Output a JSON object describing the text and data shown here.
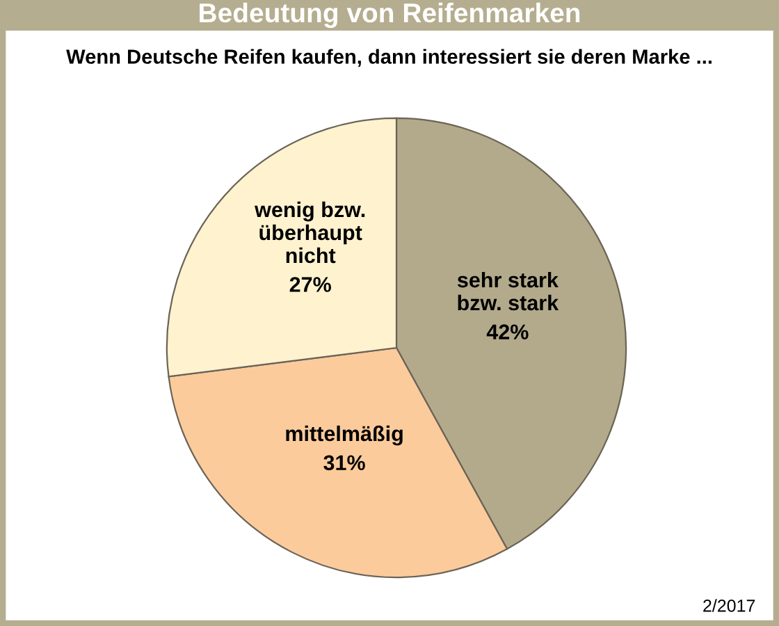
{
  "chart_data": {
    "type": "pie",
    "title": "Bedeutung von Reifenmarken",
    "subtitle": "Wenn Deutsche Reifen kaufen, dann interessiert sie deren Marke ...",
    "categories": [
      "sehr stark\nbzw. stark",
      "mittelmäßig",
      "wenig bzw.\nüberhaupt\nnicht"
    ],
    "values": [
      42,
      31,
      27
    ],
    "colors": [
      "#b3aa8c",
      "#fccb9c",
      "#fef2cf"
    ],
    "value_labels": [
      "42%",
      "31%",
      "27%"
    ],
    "legend": false,
    "annotations": [
      "2/2017"
    ]
  }
}
